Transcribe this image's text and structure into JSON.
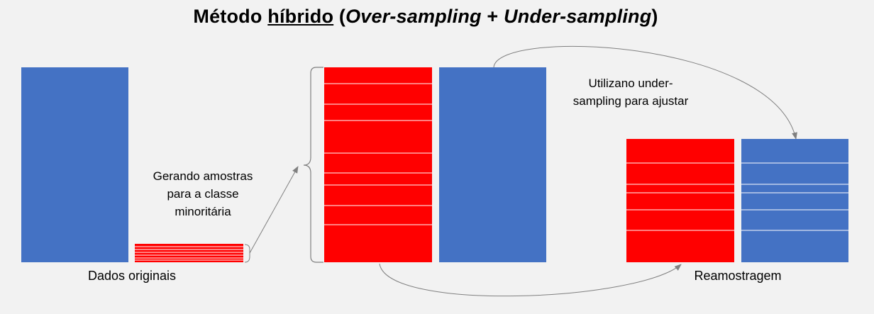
{
  "title": {
    "prefix": "Método ",
    "underlined": "híbrido",
    "open_paren": " (",
    "over": "Over-sampling",
    "plus": " + ",
    "under": "Under-sampling",
    "close_paren": ")"
  },
  "labels": {
    "original": "Dados originais",
    "generating_line1": "Gerando  amostras",
    "generating_line2": "para a classe",
    "generating_line3": "minoritária",
    "undersampling_line1": "Utilizano under-",
    "undersampling_line2": "sampling para ajustar",
    "resampled": "Reamostragem"
  },
  "colors": {
    "majority": "#4472c4",
    "minority": "#ff0000",
    "background": "#f2f2f2",
    "arrow": "#808080"
  }
}
